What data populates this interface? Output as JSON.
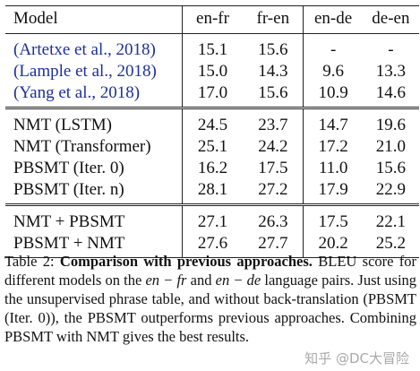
{
  "table": {
    "headers": [
      "Model",
      "en-fr",
      "fr-en",
      "en-de",
      "de-en"
    ],
    "groups": [
      {
        "rows": [
          {
            "model": "(Artetxe et al., 2018)",
            "cells": [
              "15.1",
              "15.6",
              "-",
              "-"
            ]
          },
          {
            "model": "(Lample et al., 2018)",
            "cells": [
              "15.0",
              "14.3",
              "9.6",
              "13.3"
            ]
          },
          {
            "model": "(Yang et al., 2018)",
            "cells": [
              "17.0",
              "15.6",
              "10.9",
              "14.6"
            ]
          }
        ]
      },
      {
        "rows": [
          {
            "model": "NMT (LSTM)",
            "cells": [
              "24.5",
              "23.7",
              "14.7",
              "19.6"
            ]
          },
          {
            "model": "NMT (Transformer)",
            "cells": [
              "25.1",
              "24.2",
              "17.2",
              "21.0"
            ]
          },
          {
            "model": "PBSMT (Iter. 0)",
            "cells": [
              "16.2",
              "17.5",
              "11.0",
              "15.6"
            ]
          },
          {
            "model": "PBSMT (Iter. n)",
            "cells": [
              "28.1",
              "27.2",
              "17.9",
              "22.9"
            ]
          }
        ]
      },
      {
        "rows": [
          {
            "model": "NMT + PBSMT",
            "cells": [
              "27.1",
              "26.3",
              "17.5",
              "22.1"
            ]
          },
          {
            "model": "PBSMT + NMT",
            "cells": [
              "27.6",
              "27.7",
              "20.2",
              "25.2"
            ]
          }
        ]
      }
    ]
  },
  "caption": {
    "label": "Table 2:",
    "lead": "Comparison with previous approaches.",
    "text_1": "BLEU score for different models on the",
    "math_1": "en − fr",
    "text_2": "and",
    "math_2": "en − de",
    "text_3": "language pairs. Just using the unsupervised phrase table, and without back-translation (PBSMT (Iter. 0)), the PBSMT outperforms previous approaches. Combining PBSMT with NMT gives the best results."
  },
  "watermark": "知乎 @DC大冒险"
}
